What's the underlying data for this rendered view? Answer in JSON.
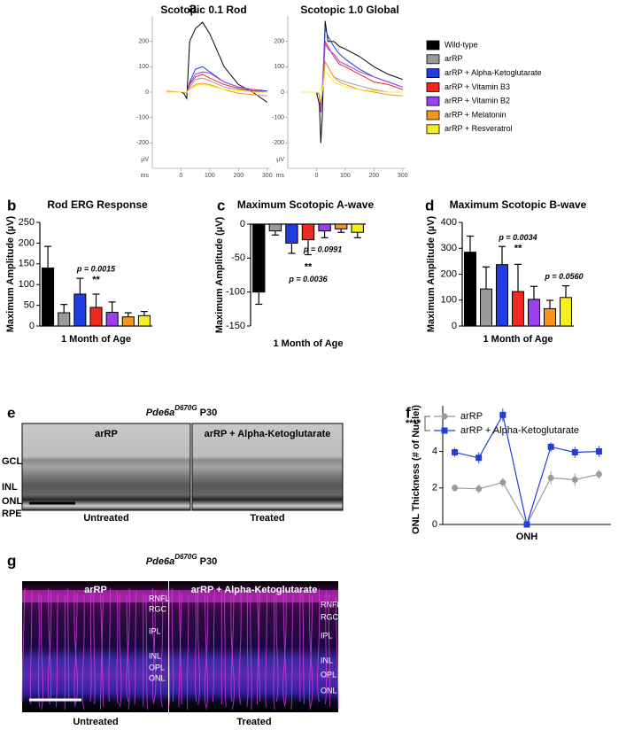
{
  "panel_labels": [
    "a",
    "b",
    "c",
    "d",
    "e",
    "f",
    "g"
  ],
  "chart_data": [
    {
      "type": "line",
      "title": "Scotopic 0.1 Rod",
      "ylabel": "µV",
      "xlabel": "ms",
      "x": [
        -50,
        0,
        10,
        20,
        30,
        50,
        75,
        100,
        150,
        200,
        250,
        300
      ],
      "xlim": [
        -100,
        310
      ],
      "ylim": [
        -300,
        300
      ],
      "xticks": [
        0,
        100,
        200,
        300
      ],
      "yticks": [
        -200,
        -100,
        0,
        100,
        200
      ],
      "series": [
        {
          "name": "Wild-type",
          "color": "#000000",
          "values": [
            0,
            0,
            -5,
            -25,
            200,
            250,
            275,
            230,
            100,
            30,
            0,
            -40
          ]
        },
        {
          "name": "arRP",
          "color": "#9a9a9a",
          "values": [
            0,
            0,
            0,
            -5,
            20,
            50,
            55,
            45,
            20,
            10,
            5,
            0
          ]
        },
        {
          "name": "arRP + Alpha-Ketoglutarate",
          "color": "#1f3de0",
          "values": [
            0,
            0,
            0,
            0,
            40,
            90,
            100,
            80,
            40,
            20,
            10,
            5
          ]
        },
        {
          "name": "arRP + Vitamin B3",
          "color": "#f0281e",
          "values": [
            0,
            0,
            0,
            0,
            30,
            60,
            70,
            55,
            30,
            15,
            5,
            0
          ]
        },
        {
          "name": "arRP + Vitamin B2",
          "color": "#9b3ff0",
          "values": [
            0,
            0,
            0,
            0,
            35,
            70,
            80,
            75,
            40,
            20,
            10,
            0
          ]
        },
        {
          "name": "arRP + Melatonin",
          "color": "#f7941d",
          "values": [
            5,
            0,
            0,
            0,
            15,
            30,
            35,
            30,
            10,
            -5,
            -10,
            -15
          ]
        },
        {
          "name": "arRP + Resveratrol",
          "color": "#f6ef1e",
          "values": [
            0,
            0,
            0,
            0,
            10,
            25,
            30,
            25,
            10,
            5,
            0,
            0
          ]
        }
      ]
    },
    {
      "type": "line",
      "title": "Scotopic 1.0 Global",
      "ylabel": "µV",
      "xlabel": "ms",
      "x": [
        -50,
        0,
        10,
        15,
        20,
        30,
        40,
        60,
        80,
        100,
        150,
        200,
        250,
        300
      ],
      "xlim": [
        -100,
        310
      ],
      "ylim": [
        -300,
        300
      ],
      "xticks": [
        0,
        100,
        200,
        300
      ],
      "yticks": [
        -200,
        -100,
        0,
        100,
        200
      ],
      "series": [
        {
          "color": "#000000",
          "values": [
            0,
            0,
            -50,
            -200,
            -100,
            280,
            200,
            200,
            180,
            170,
            140,
            100,
            70,
            50
          ]
        },
        {
          "color": "#9a9a9a",
          "values": [
            0,
            0,
            -10,
            -60,
            0,
            120,
            100,
            60,
            50,
            40,
            25,
            10,
            0,
            0
          ]
        },
        {
          "color": "#1f3de0",
          "values": [
            0,
            0,
            -10,
            -80,
            0,
            250,
            220,
            180,
            150,
            130,
            90,
            60,
            40,
            20
          ]
        },
        {
          "color": "#f0281e",
          "values": [
            0,
            0,
            -10,
            -70,
            0,
            200,
            180,
            140,
            110,
            100,
            70,
            40,
            30,
            10
          ]
        },
        {
          "color": "#9b3ff0",
          "values": [
            0,
            0,
            -10,
            -60,
            0,
            190,
            170,
            150,
            120,
            110,
            80,
            60,
            40,
            20
          ]
        },
        {
          "color": "#f7941d",
          "values": [
            0,
            0,
            -5,
            -40,
            0,
            120,
            100,
            60,
            40,
            30,
            10,
            0,
            -10,
            -15
          ]
        },
        {
          "color": "#f6ef1e",
          "values": [
            0,
            0,
            -5,
            -30,
            0,
            80,
            70,
            40,
            30,
            20,
            10,
            5,
            0,
            0
          ]
        }
      ]
    },
    {
      "type": "bar",
      "title": "Rod ERG Response",
      "ylabel": "Maximum Amplitude (µV)",
      "xlabel": "1 Month of Age",
      "values": [
        140,
        32,
        77,
        45,
        33,
        22,
        25
      ],
      "errors": [
        52,
        20,
        38,
        32,
        25,
        10,
        10
      ],
      "colors": [
        "#000000",
        "#9a9a9a",
        "#1f3de0",
        "#f0281e",
        "#9b3ff0",
        "#f7941d",
        "#f6ef1e"
      ],
      "ylim": [
        0,
        250
      ],
      "yticks": [
        0,
        50,
        100,
        150,
        200,
        250
      ],
      "annotations": [
        "p = 0.0015",
        "**"
      ]
    },
    {
      "type": "bar",
      "title": "Maximum Scotopic A-wave",
      "ylabel": "Maximum Amplitude (µV)",
      "xlabel": "1 Month of Age",
      "values": [
        -100,
        -10,
        -28,
        -23,
        -10,
        -7,
        -12
      ],
      "errors": [
        18,
        6,
        15,
        22,
        10,
        5,
        8
      ],
      "colors": [
        "#000000",
        "#9a9a9a",
        "#1f3de0",
        "#f0281e",
        "#9b3ff0",
        "#f7941d",
        "#f6ef1e"
      ],
      "ylim": [
        -150,
        0
      ],
      "yticks": [
        -150,
        -100,
        -50,
        0
      ],
      "annotations": [
        "**",
        "p = 0.0036",
        "p = 0.0991"
      ]
    },
    {
      "type": "bar",
      "title": "Maximum Scotopic B-wave",
      "ylabel": "Maximum Amplitude (µV)",
      "xlabel": "1 Month of Age",
      "values": [
        285,
        143,
        237,
        133,
        103,
        67,
        110
      ],
      "errors": [
        62,
        85,
        70,
        105,
        50,
        32,
        45
      ],
      "colors": [
        "#000000",
        "#9a9a9a",
        "#1f3de0",
        "#f0281e",
        "#9b3ff0",
        "#f7941d",
        "#f6ef1e"
      ],
      "ylim": [
        0,
        400
      ],
      "yticks": [
        0,
        100,
        200,
        300,
        400
      ],
      "annotations": [
        "p = 0.0034",
        "**",
        "p = 0.0560"
      ]
    },
    {
      "type": "errorline",
      "ylabel": "ONL Thickness (# of Nuclei)",
      "annotation": "****",
      "categories": [
        null,
        null,
        null,
        "ONH",
        null,
        null,
        null
      ],
      "ylim": [
        0,
        6.5
      ],
      "yticks": [
        0,
        2,
        4
      ],
      "series": [
        {
          "name": "arRP",
          "color": "#9a9a9a",
          "marker": "circle",
          "values": [
            2.0,
            1.95,
            2.3,
            0,
            2.55,
            2.45,
            2.75
          ],
          "errors": [
            0.2,
            0.25,
            0.25,
            0,
            0.35,
            0.35,
            0.25
          ]
        },
        {
          "name": "arRP + Alpha-Ketoglutarate",
          "color": "#1f3de0",
          "marker": "square",
          "values": [
            3.95,
            3.65,
            6.0,
            0,
            4.25,
            3.95,
            4.0
          ],
          "errors": [
            0.25,
            0.3,
            0.35,
            0,
            0.25,
            0.3,
            0.3
          ]
        }
      ]
    }
  ],
  "panel_e": {
    "title": {
      "gene": "Pde6a",
      "allele": "D670G",
      "age": "P30"
    },
    "columns": [
      "arRP",
      "arRP + Alpha-Ketoglutarate"
    ],
    "conditions": [
      "Untreated",
      "Treated"
    ],
    "layers": [
      "GCL",
      "INL",
      "ONL",
      "RPE"
    ]
  },
  "panel_g": {
    "title": {
      "gene": "Pde6a",
      "allele": "D670G",
      "age": "P30"
    },
    "columns": [
      "arRP",
      "arRP + Alpha-Ketoglutarate"
    ],
    "conditions": [
      "Untreated",
      "Treated"
    ],
    "layers_left": [
      "RNFL",
      "RGC",
      "IPL",
      "INL",
      "OPL",
      "ONL"
    ],
    "layers_right": [
      "RNFL",
      "RGC",
      "IPL",
      "INL",
      "OPL",
      "ONL"
    ]
  }
}
